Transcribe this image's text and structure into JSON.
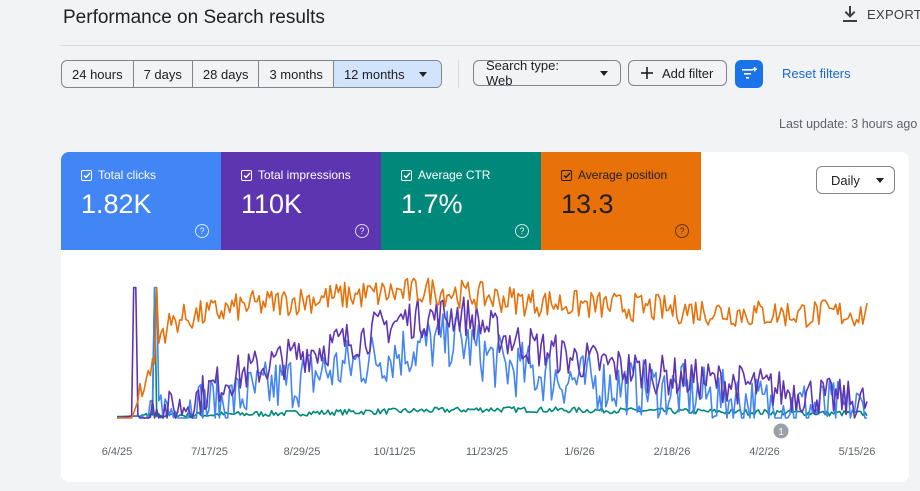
{
  "header": {
    "title": "Performance on Search results",
    "export_label": "EXPORT",
    "export_icon": "download-icon"
  },
  "date_ranges": [
    {
      "label": "24 hours",
      "selected": false
    },
    {
      "label": "7 days",
      "selected": false
    },
    {
      "label": "28 days",
      "selected": false
    },
    {
      "label": "3 months",
      "selected": false
    },
    {
      "label": "12 months",
      "selected": true
    }
  ],
  "filters": {
    "search_type_label": "Search type: Web",
    "add_filter_label": "Add filter",
    "reset_label": "Reset filters",
    "accent": "#1a73e8"
  },
  "last_update": "Last update: 3 hours ago",
  "metrics": [
    {
      "label": "Total clicks",
      "value": "1.82K",
      "color": "#4285f4",
      "checked": true
    },
    {
      "label": "Total impressions",
      "value": "110K",
      "color": "#5e35b1",
      "checked": true
    },
    {
      "label": "Average CTR",
      "value": "1.7%",
      "color": "#00897b",
      "checked": true
    },
    {
      "label": "Average position",
      "value": "13.3",
      "color": "#e8710a",
      "checked": true
    }
  ],
  "granularity": "Daily",
  "chart_data": {
    "type": "line",
    "x_tick_labels": [
      "6/4/25",
      "7/17/25",
      "8/29/25",
      "10/11/25",
      "11/23/25",
      "1/6/26",
      "2/18/26",
      "4/2/26",
      "5/15/26"
    ],
    "annotation": "1",
    "y_axis_visible": false,
    "grid": false,
    "series": [
      {
        "name": "Total clicks",
        "color": "#4285f4"
      },
      {
        "name": "Total impressions",
        "color": "#5e35b1"
      },
      {
        "name": "Average CTR",
        "color": "#00897b"
      },
      {
        "name": "Average position",
        "color": "#e8710a"
      }
    ]
  }
}
